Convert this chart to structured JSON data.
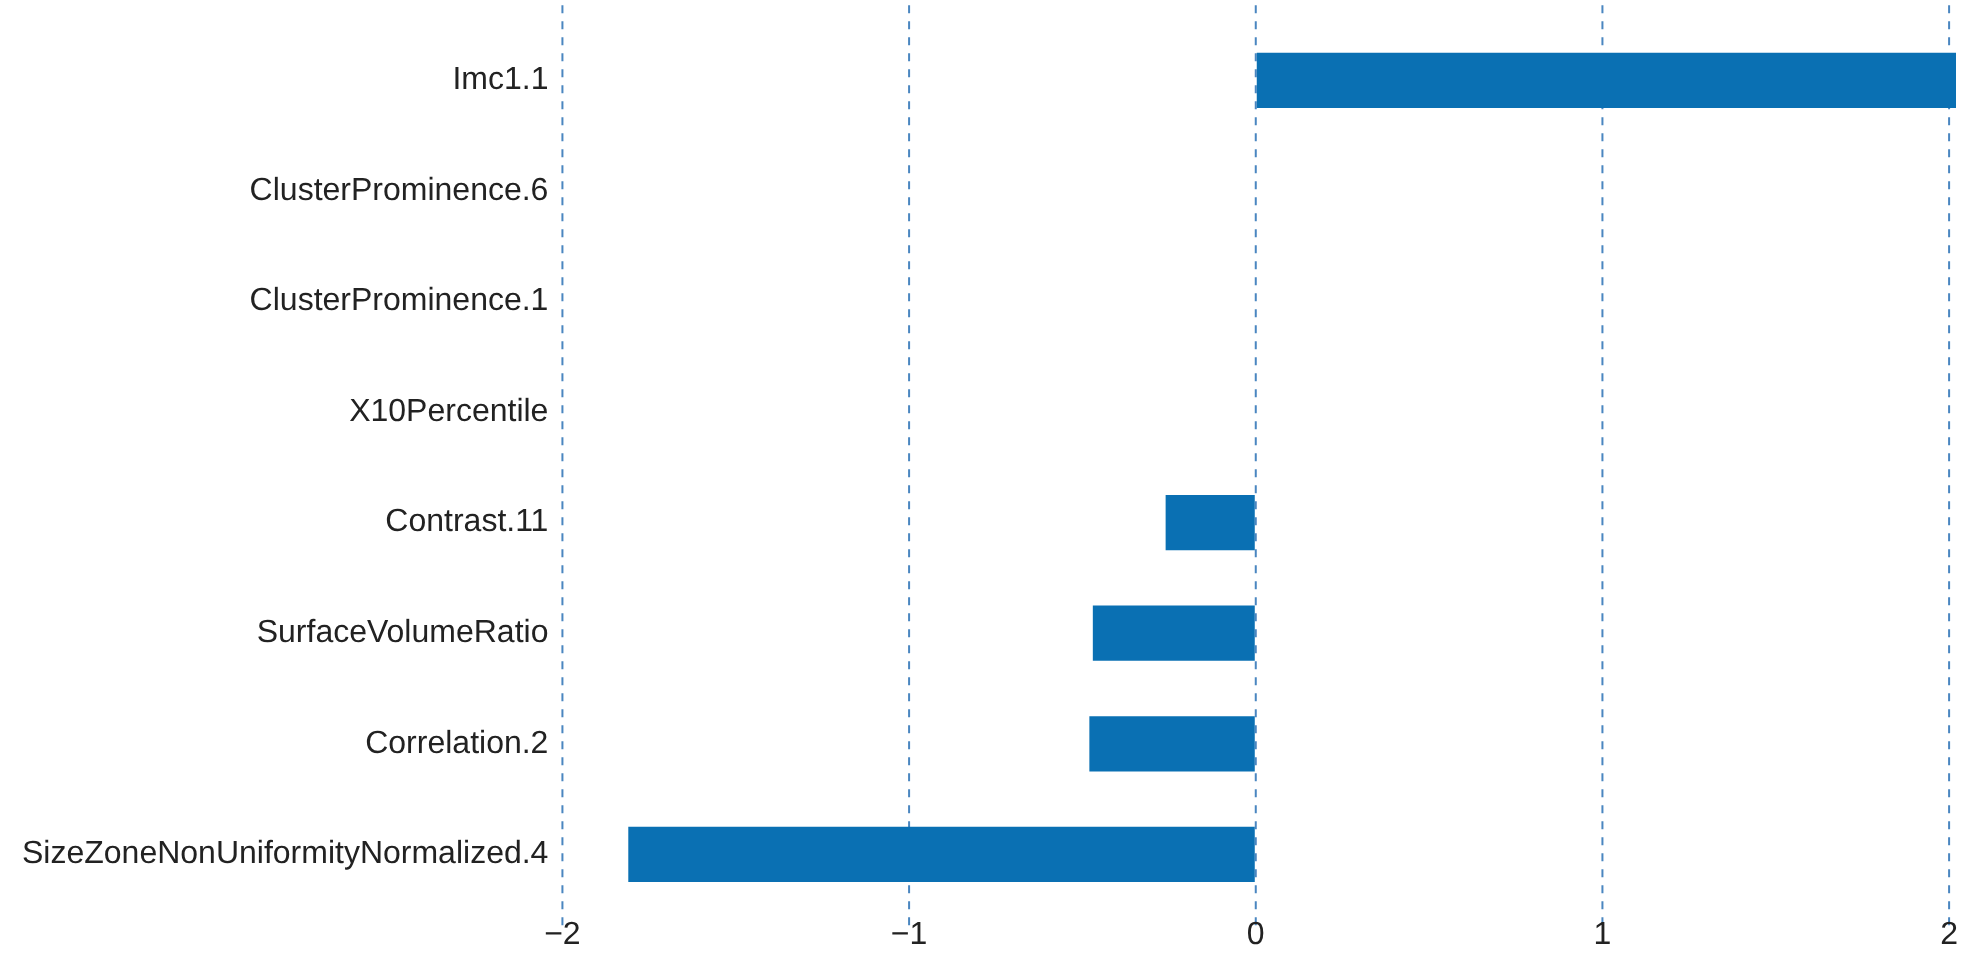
{
  "chart_data": {
    "type": "bar",
    "orientation": "horizontal",
    "categories": [
      "Imc1.1",
      "ClusterProminence.6",
      "ClusterProminence.1",
      "X10Percentile",
      "Contrast.11",
      "SurfaceVolumeRatio",
      "Correlation.2",
      "SizeZoneNonUniformityNormalized.4"
    ],
    "values": [
      2.02,
      0,
      0,
      0,
      -0.26,
      -0.47,
      -0.48,
      -1.81
    ],
    "color": "#0a70b3",
    "xlim": [
      -2,
      2.02
    ],
    "xticks": [
      {
        "value": -2,
        "label": "−2"
      },
      {
        "value": -1,
        "label": "−1"
      },
      0,
      1,
      2
    ],
    "grid": "x"
  }
}
